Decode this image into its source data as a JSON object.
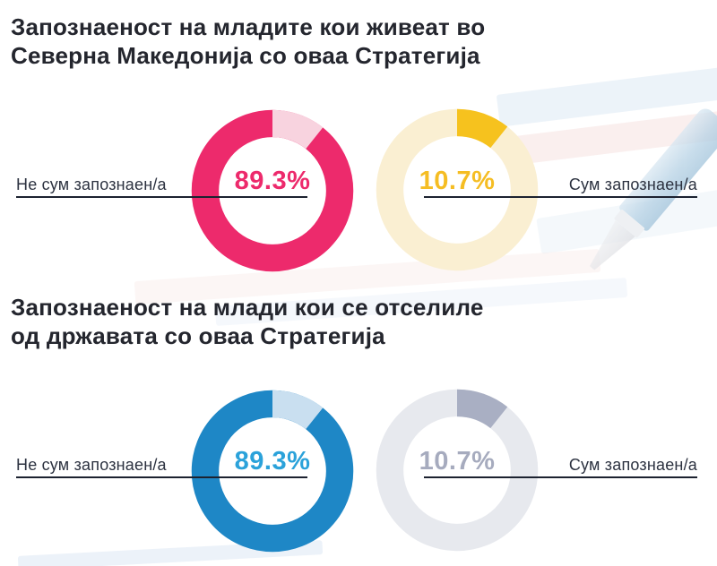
{
  "page": {
    "background": "#ffffff",
    "text_dark": "#24262e",
    "label_color": "#2c3240",
    "line_color": "#1c2230"
  },
  "sections": [
    {
      "title_line1": "Запознаеност на младите кои живеат во",
      "title_line2": "Северна Македонија со оваа Стратегија",
      "donuts": [
        {
          "label": "Не сум запознаен/а",
          "pct": "89.3%",
          "pct_color": "#ed2a6c",
          "ring_color": "#ed2a6c",
          "segment_color": "#f8d3df",
          "segment_pct": 10.7
        },
        {
          "label": "Сум запознаен/а",
          "pct": "10.7%",
          "pct_color": "#f5bd23",
          "ring_color": "#faefd2",
          "segment_color": "#f6c21e",
          "segment_pct": 10.7
        }
      ]
    },
    {
      "title_line1": "Запознаеност на млади кои се отселиле",
      "title_line2": "од државата со оваа Стратегија",
      "donuts": [
        {
          "label": "Не сум запознаен/а",
          "pct": "89.3%",
          "pct_color": "#2ba2da",
          "ring_color": "#1e87c6",
          "segment_color": "#c9dff0",
          "segment_pct": 10.7
        },
        {
          "label": "Сум запознаен/а",
          "pct": "10.7%",
          "pct_color": "#a6abbe",
          "ring_color": "#e7e9ee",
          "segment_color": "#a9afc3",
          "segment_pct": 10.7
        }
      ]
    }
  ],
  "chart_data": [
    {
      "type": "pie",
      "variant": "donut-pair",
      "title": "Запознаеност на младите кои живеат во Северна Македонија со оваа Стратегија",
      "categories": [
        "Не сум запознаен/а",
        "Сум запознаен/а"
      ],
      "values": [
        89.3,
        10.7
      ],
      "unit": "%",
      "colors": [
        "#ed2a6c",
        "#f6c21e"
      ],
      "legend_position": "left and right of donuts"
    },
    {
      "type": "pie",
      "variant": "donut-pair",
      "title": "Запознаеност на млади кои се отселиле од државата со оваа Стратегија",
      "categories": [
        "Не сум запознаен/а",
        "Сум запознаен/а"
      ],
      "values": [
        89.3,
        10.7
      ],
      "unit": "%",
      "colors": [
        "#1e87c6",
        "#a9afc3"
      ],
      "legend_position": "left and right of donuts"
    }
  ]
}
